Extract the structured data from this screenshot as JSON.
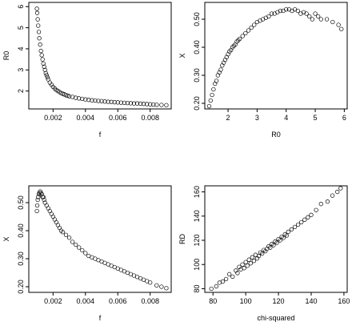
{
  "chart_data": [
    {
      "type": "scatter",
      "xlabel": "f",
      "ylabel": "R0",
      "xlim": [
        0.0005,
        0.0093
      ],
      "ylim": [
        1.15,
        6.2
      ],
      "xticks": [
        0.002,
        0.004,
        0.006,
        0.008
      ],
      "xtick_labels": [
        "0.002",
        "0.004",
        "0.006",
        "0.008"
      ],
      "yticks": [
        2,
        3,
        4,
        5,
        6
      ],
      "ytick_labels": [
        "2",
        "3",
        "4",
        "5",
        "6"
      ],
      "x": [
        0.001,
        0.00102,
        0.00105,
        0.00108,
        0.00112,
        0.00115,
        0.0012,
        0.00125,
        0.0013,
        0.00135,
        0.0014,
        0.00145,
        0.0015,
        0.00155,
        0.0016,
        0.00165,
        0.0017,
        0.0018,
        0.0019,
        0.002,
        0.0021,
        0.0022,
        0.0023,
        0.0024,
        0.0025,
        0.0026,
        0.0027,
        0.0028,
        0.0029,
        0.003,
        0.0032,
        0.0034,
        0.0036,
        0.0038,
        0.004,
        0.0042,
        0.0044,
        0.0046,
        0.0048,
        0.005,
        0.0052,
        0.0054,
        0.0056,
        0.0058,
        0.006,
        0.0062,
        0.0064,
        0.0066,
        0.0068,
        0.007,
        0.0072,
        0.0074,
        0.0076,
        0.0078,
        0.008,
        0.0082,
        0.0084,
        0.0087,
        0.009
      ],
      "y": [
        5.9,
        5.7,
        5.4,
        5.1,
        4.8,
        4.5,
        4.2,
        3.9,
        3.7,
        3.5,
        3.3,
        3.15,
        3.0,
        2.85,
        2.75,
        2.65,
        2.55,
        2.4,
        2.3,
        2.2,
        2.12,
        2.05,
        2.0,
        1.95,
        1.9,
        1.87,
        1.84,
        1.8,
        1.78,
        1.75,
        1.72,
        1.68,
        1.65,
        1.63,
        1.6,
        1.58,
        1.56,
        1.55,
        1.53,
        1.52,
        1.5,
        1.49,
        1.48,
        1.47,
        1.46,
        1.45,
        1.44,
        1.43,
        1.42,
        1.41,
        1.41,
        1.4,
        1.39,
        1.38,
        1.37,
        1.36,
        1.35,
        1.34,
        1.33
      ]
    },
    {
      "type": "scatter",
      "xlabel": "R0",
      "ylabel": "X",
      "xlim": [
        1.2,
        6.1
      ],
      "ylim": [
        0.18,
        0.56
      ],
      "xticks": [
        2,
        3,
        4,
        5,
        6
      ],
      "xtick_labels": [
        "2",
        "3",
        "4",
        "5",
        "6"
      ],
      "yticks": [
        0.2,
        0.3,
        0.4,
        0.5
      ],
      "ytick_labels": [
        "0.20",
        "0.30",
        "0.40",
        "0.50"
      ],
      "x": [
        1.35,
        1.4,
        1.45,
        1.5,
        1.55,
        1.6,
        1.65,
        1.7,
        1.75,
        1.8,
        1.85,
        1.9,
        1.95,
        2.0,
        2.05,
        2.1,
        2.15,
        2.2,
        2.25,
        2.3,
        2.35,
        2.4,
        2.5,
        2.6,
        2.7,
        2.8,
        2.9,
        3.0,
        3.1,
        3.2,
        3.3,
        3.4,
        3.5,
        3.6,
        3.7,
        3.8,
        3.9,
        4.0,
        4.1,
        4.2,
        4.3,
        4.4,
        4.5,
        4.6,
        4.7,
        4.8,
        4.9,
        5.0,
        5.1,
        5.2,
        5.4,
        5.6,
        5.8,
        5.9
      ],
      "y": [
        0.19,
        0.21,
        0.23,
        0.25,
        0.27,
        0.28,
        0.3,
        0.31,
        0.32,
        0.335,
        0.345,
        0.355,
        0.365,
        0.375,
        0.385,
        0.39,
        0.4,
        0.405,
        0.41,
        0.42,
        0.425,
        0.43,
        0.44,
        0.45,
        0.46,
        0.47,
        0.48,
        0.49,
        0.495,
        0.5,
        0.505,
        0.51,
        0.52,
        0.52,
        0.525,
        0.53,
        0.53,
        0.535,
        0.535,
        0.53,
        0.535,
        0.53,
        0.52,
        0.525,
        0.52,
        0.51,
        0.5,
        0.52,
        0.51,
        0.5,
        0.5,
        0.49,
        0.48,
        0.465
      ]
    },
    {
      "type": "scatter",
      "xlabel": "f",
      "ylabel": "X",
      "xlim": [
        0.0005,
        0.0093
      ],
      "ylim": [
        0.18,
        0.56
      ],
      "xticks": [
        0.002,
        0.004,
        0.006,
        0.008
      ],
      "xtick_labels": [
        "0.002",
        "0.004",
        "0.006",
        "0.008"
      ],
      "yticks": [
        0.2,
        0.3,
        0.4,
        0.5
      ],
      "ytick_labels": [
        "0.20",
        "0.30",
        "0.40",
        "0.50"
      ],
      "x": [
        0.001,
        0.00102,
        0.00105,
        0.00108,
        0.00112,
        0.00115,
        0.0012,
        0.00125,
        0.0013,
        0.00135,
        0.0014,
        0.00145,
        0.0015,
        0.0016,
        0.0017,
        0.0018,
        0.0019,
        0.002,
        0.0021,
        0.0022,
        0.0023,
        0.0024,
        0.0025,
        0.0026,
        0.0028,
        0.003,
        0.0032,
        0.0034,
        0.0036,
        0.0038,
        0.004,
        0.0042,
        0.0044,
        0.0046,
        0.0048,
        0.005,
        0.0052,
        0.0054,
        0.0056,
        0.0058,
        0.006,
        0.0062,
        0.0064,
        0.0066,
        0.0068,
        0.007,
        0.0072,
        0.0074,
        0.0076,
        0.0078,
        0.008,
        0.0084,
        0.0087,
        0.009
      ],
      "y": [
        0.47,
        0.49,
        0.51,
        0.52,
        0.53,
        0.535,
        0.54,
        0.535,
        0.53,
        0.52,
        0.52,
        0.51,
        0.5,
        0.49,
        0.48,
        0.47,
        0.46,
        0.45,
        0.44,
        0.43,
        0.42,
        0.41,
        0.4,
        0.395,
        0.385,
        0.375,
        0.36,
        0.35,
        0.34,
        0.33,
        0.32,
        0.31,
        0.305,
        0.3,
        0.295,
        0.29,
        0.285,
        0.28,
        0.275,
        0.27,
        0.265,
        0.26,
        0.255,
        0.25,
        0.245,
        0.24,
        0.235,
        0.23,
        0.225,
        0.22,
        0.215,
        0.205,
        0.2,
        0.195
      ]
    },
    {
      "type": "scatter",
      "xlabel": "chi-squared",
      "ylabel": "RD",
      "xlim": [
        75,
        162
      ],
      "ylim": [
        77,
        165
      ],
      "xticks": [
        80,
        100,
        120,
        140,
        160
      ],
      "xtick_labels": [
        "80",
        "100",
        "120",
        "140",
        "160"
      ],
      "yticks": [
        80,
        100,
        120,
        140,
        160
      ],
      "ytick_labels": [
        "80",
        "100",
        "120",
        "140",
        "160"
      ],
      "x": [
        79,
        82,
        84,
        86,
        88,
        90,
        92,
        94,
        95,
        96,
        97,
        98,
        99,
        100,
        101,
        102,
        103,
        104,
        105,
        106,
        107,
        108,
        109,
        110,
        111,
        112,
        113,
        114,
        115,
        116,
        117,
        118,
        119,
        120,
        121,
        122,
        123,
        124,
        125,
        126,
        128,
        130,
        132,
        134,
        136,
        138,
        140,
        143,
        146,
        150,
        153,
        156,
        158
      ],
      "y": [
        80,
        82,
        85,
        86,
        88,
        92,
        90,
        95,
        93,
        98,
        96,
        100,
        97,
        102,
        99,
        104,
        101,
        106,
        103,
        108,
        105,
        107,
        110,
        109,
        112,
        111,
        113,
        115,
        114,
        117,
        116,
        119,
        118,
        121,
        120,
        123,
        122,
        125,
        124,
        127,
        129,
        131,
        133,
        135,
        137,
        139,
        141,
        145,
        150,
        152,
        157,
        160,
        163
      ]
    }
  ]
}
